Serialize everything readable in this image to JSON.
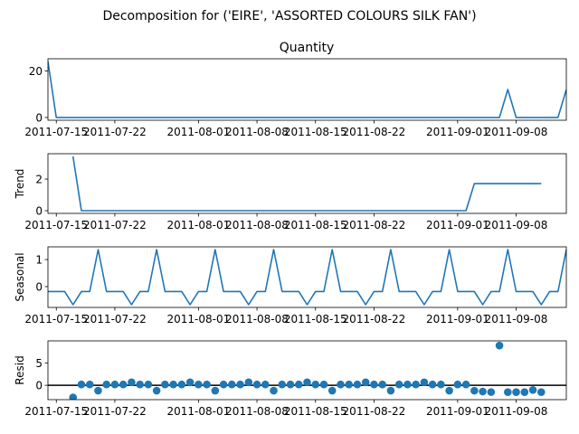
{
  "figure": {
    "suptitle": "Decomposition for ('EIRE', 'ASSORTED COLOURS SILK FAN')",
    "panel_title": "Quantity"
  },
  "colors": {
    "series": "#1f77b4",
    "axis": "#000000",
    "zero_line": "#000000"
  },
  "chart_data": [
    {
      "type": "line",
      "name": "observed",
      "title": "Quantity",
      "ylabel": "",
      "x_dates": [
        "2011-07-14",
        "2011-07-15",
        "2011-07-16",
        "2011-07-17",
        "2011-07-18",
        "2011-07-19",
        "2011-07-20",
        "2011-07-21",
        "2011-07-22",
        "2011-07-23",
        "2011-07-24",
        "2011-07-25",
        "2011-07-26",
        "2011-07-27",
        "2011-07-28",
        "2011-07-29",
        "2011-07-30",
        "2011-07-31",
        "2011-08-01",
        "2011-08-02",
        "2011-08-03",
        "2011-08-04",
        "2011-08-05",
        "2011-08-06",
        "2011-08-07",
        "2011-08-08",
        "2011-08-09",
        "2011-08-10",
        "2011-08-11",
        "2011-08-12",
        "2011-08-13",
        "2011-08-14",
        "2011-08-15",
        "2011-08-16",
        "2011-08-17",
        "2011-08-18",
        "2011-08-19",
        "2011-08-20",
        "2011-08-21",
        "2011-08-22",
        "2011-08-23",
        "2011-08-24",
        "2011-08-25",
        "2011-08-26",
        "2011-08-27",
        "2011-08-28",
        "2011-08-29",
        "2011-08-30",
        "2011-08-31",
        "2011-09-01",
        "2011-09-02",
        "2011-09-03",
        "2011-09-04",
        "2011-09-05",
        "2011-09-06",
        "2011-09-07",
        "2011-09-08",
        "2011-09-09",
        "2011-09-10",
        "2011-09-11",
        "2011-09-12",
        "2011-09-13",
        "2011-09-14"
      ],
      "values": [
        24,
        0,
        0,
        0,
        0,
        0,
        0,
        0,
        0,
        0,
        0,
        0,
        0,
        0,
        0,
        0,
        0,
        0,
        0,
        0,
        0,
        0,
        0,
        0,
        0,
        0,
        0,
        0,
        0,
        0,
        0,
        0,
        0,
        0,
        0,
        0,
        0,
        0,
        0,
        0,
        0,
        0,
        0,
        0,
        0,
        0,
        0,
        0,
        0,
        0,
        0,
        0,
        0,
        0,
        0,
        12,
        0,
        0,
        0,
        0,
        0,
        0,
        12
      ],
      "xlim": [
        "2011-07-14",
        "2011-09-14"
      ],
      "ylim": [
        -1.2,
        25.2
      ],
      "yticks": [
        0,
        20
      ],
      "xticks": [
        "2011-07-15",
        "2011-07-22",
        "2011-08-01",
        "2011-08-08",
        "2011-08-15",
        "2011-08-22",
        "2011-09-01",
        "2011-09-08"
      ]
    },
    {
      "type": "line",
      "name": "trend",
      "title": "",
      "ylabel": "Trend",
      "x_dates": [
        "2011-07-17",
        "2011-07-18",
        "2011-07-19",
        "2011-07-20",
        "2011-07-21",
        "2011-07-22",
        "2011-07-23",
        "2011-07-24",
        "2011-07-25",
        "2011-07-26",
        "2011-07-27",
        "2011-07-28",
        "2011-07-29",
        "2011-07-30",
        "2011-07-31",
        "2011-08-01",
        "2011-08-02",
        "2011-08-03",
        "2011-08-04",
        "2011-08-05",
        "2011-08-06",
        "2011-08-07",
        "2011-08-08",
        "2011-08-09",
        "2011-08-10",
        "2011-08-11",
        "2011-08-12",
        "2011-08-13",
        "2011-08-14",
        "2011-08-15",
        "2011-08-16",
        "2011-08-17",
        "2011-08-18",
        "2011-08-19",
        "2011-08-20",
        "2011-08-21",
        "2011-08-22",
        "2011-08-23",
        "2011-08-24",
        "2011-08-25",
        "2011-08-26",
        "2011-08-27",
        "2011-08-28",
        "2011-08-29",
        "2011-08-30",
        "2011-08-31",
        "2011-09-01",
        "2011-09-02",
        "2011-09-03",
        "2011-09-04",
        "2011-09-05",
        "2011-09-06",
        "2011-09-07",
        "2011-09-08",
        "2011-09-09",
        "2011-09-10",
        "2011-09-11"
      ],
      "values": [
        3.43,
        0,
        0,
        0,
        0,
        0,
        0,
        0,
        0,
        0,
        0,
        0,
        0,
        0,
        0,
        0,
        0,
        0,
        0,
        0,
        0,
        0,
        0,
        0,
        0,
        0,
        0,
        0,
        0,
        0,
        0,
        0,
        0,
        0,
        0,
        0,
        0,
        0,
        0,
        0,
        0,
        0,
        0,
        0,
        0,
        0,
        0,
        0,
        1.71,
        1.71,
        1.71,
        1.71,
        1.71,
        1.71,
        1.71,
        1.71,
        1.71
      ],
      "xlim": [
        "2011-07-14",
        "2011-09-14"
      ],
      "ylim": [
        -0.17,
        3.6
      ],
      "yticks": [
        0,
        2
      ],
      "xticks": [
        "2011-07-15",
        "2011-07-22",
        "2011-08-01",
        "2011-08-08",
        "2011-08-15",
        "2011-08-22",
        "2011-09-01",
        "2011-09-08"
      ]
    },
    {
      "type": "line",
      "name": "seasonal",
      "title": "",
      "ylabel": "Seasonal",
      "x_dates": [
        "2011-07-14",
        "2011-07-15",
        "2011-07-16",
        "2011-07-17",
        "2011-07-18",
        "2011-07-19",
        "2011-07-20",
        "2011-07-21",
        "2011-07-22",
        "2011-07-23",
        "2011-07-24",
        "2011-07-25",
        "2011-07-26",
        "2011-07-27",
        "2011-07-28",
        "2011-07-29",
        "2011-07-30",
        "2011-07-31",
        "2011-08-01",
        "2011-08-02",
        "2011-08-03",
        "2011-08-04",
        "2011-08-05",
        "2011-08-06",
        "2011-08-07",
        "2011-08-08",
        "2011-08-09",
        "2011-08-10",
        "2011-08-11",
        "2011-08-12",
        "2011-08-13",
        "2011-08-14",
        "2011-08-15",
        "2011-08-16",
        "2011-08-17",
        "2011-08-18",
        "2011-08-19",
        "2011-08-20",
        "2011-08-21",
        "2011-08-22",
        "2011-08-23",
        "2011-08-24",
        "2011-08-25",
        "2011-08-26",
        "2011-08-27",
        "2011-08-28",
        "2011-08-29",
        "2011-08-30",
        "2011-08-31",
        "2011-09-01",
        "2011-09-02",
        "2011-09-03",
        "2011-09-04",
        "2011-09-05",
        "2011-09-06",
        "2011-09-07",
        "2011-09-08",
        "2011-09-09",
        "2011-09-10",
        "2011-09-11",
        "2011-09-12",
        "2011-09-13",
        "2011-09-14"
      ],
      "values": [
        -0.18,
        -0.18,
        -0.18,
        -0.67,
        -0.18,
        -0.18,
        1.37,
        -0.18,
        -0.18,
        -0.18,
        -0.67,
        -0.18,
        -0.18,
        1.37,
        -0.18,
        -0.18,
        -0.18,
        -0.67,
        -0.18,
        -0.18,
        1.37,
        -0.18,
        -0.18,
        -0.18,
        -0.67,
        -0.18,
        -0.18,
        1.37,
        -0.18,
        -0.18,
        -0.18,
        -0.67,
        -0.18,
        -0.18,
        1.37,
        -0.18,
        -0.18,
        -0.18,
        -0.67,
        -0.18,
        -0.18,
        1.37,
        -0.18,
        -0.18,
        -0.18,
        -0.67,
        -0.18,
        -0.18,
        1.37,
        -0.18,
        -0.18,
        -0.18,
        -0.67,
        -0.18,
        -0.18,
        1.37,
        -0.18,
        -0.18,
        -0.18,
        -0.67,
        -0.18,
        -0.18,
        1.37
      ],
      "xlim": [
        "2011-07-14",
        "2011-09-14"
      ],
      "ylim": [
        -0.77,
        1.47
      ],
      "yticks": [
        0,
        1
      ],
      "xticks": [
        "2011-07-15",
        "2011-07-22",
        "2011-08-01",
        "2011-08-08",
        "2011-08-15",
        "2011-08-22",
        "2011-09-01",
        "2011-09-08"
      ]
    },
    {
      "type": "scatter",
      "name": "resid",
      "title": "",
      "ylabel": "Resid",
      "zero_line": 0,
      "x_dates": [
        "2011-07-17",
        "2011-07-18",
        "2011-07-19",
        "2011-07-20",
        "2011-07-21",
        "2011-07-22",
        "2011-07-23",
        "2011-07-24",
        "2011-07-25",
        "2011-07-26",
        "2011-07-27",
        "2011-07-28",
        "2011-07-29",
        "2011-07-30",
        "2011-07-31",
        "2011-08-01",
        "2011-08-02",
        "2011-08-03",
        "2011-08-04",
        "2011-08-05",
        "2011-08-06",
        "2011-08-07",
        "2011-08-08",
        "2011-08-09",
        "2011-08-10",
        "2011-08-11",
        "2011-08-12",
        "2011-08-13",
        "2011-08-14",
        "2011-08-15",
        "2011-08-16",
        "2011-08-17",
        "2011-08-18",
        "2011-08-19",
        "2011-08-20",
        "2011-08-21",
        "2011-08-22",
        "2011-08-23",
        "2011-08-24",
        "2011-08-25",
        "2011-08-26",
        "2011-08-27",
        "2011-08-28",
        "2011-08-29",
        "2011-08-30",
        "2011-08-31",
        "2011-09-01",
        "2011-09-02",
        "2011-09-03",
        "2011-09-04",
        "2011-09-05",
        "2011-09-06",
        "2011-09-07",
        "2011-09-08",
        "2011-09-09",
        "2011-09-10",
        "2011-09-11"
      ],
      "values": [
        -2.7,
        0.18,
        0.18,
        -1.19,
        0.18,
        0.18,
        0.18,
        0.67,
        0.18,
        0.18,
        -1.19,
        0.18,
        0.18,
        0.18,
        0.67,
        0.18,
        0.18,
        -1.19,
        0.18,
        0.18,
        0.18,
        0.67,
        0.18,
        0.18,
        -1.19,
        0.18,
        0.18,
        0.18,
        0.67,
        0.18,
        0.18,
        -1.19,
        0.18,
        0.18,
        0.18,
        0.67,
        0.18,
        0.18,
        -1.19,
        0.18,
        0.18,
        0.18,
        0.67,
        0.18,
        0.18,
        -1.19,
        0.18,
        0.18,
        -1.21,
        -1.39,
        -1.51,
        8.86,
        -1.53,
        -1.53,
        -1.53,
        -1.04,
        -1.53
      ],
      "xlim": [
        "2011-07-14",
        "2011-09-14"
      ],
      "ylim": [
        -3.2,
        9.9
      ],
      "yticks": [
        0,
        5
      ],
      "xticks": [
        "2011-07-15",
        "2011-07-22",
        "2011-08-01",
        "2011-08-08",
        "2011-08-15",
        "2011-08-22",
        "2011-09-01",
        "2011-09-08"
      ]
    }
  ]
}
